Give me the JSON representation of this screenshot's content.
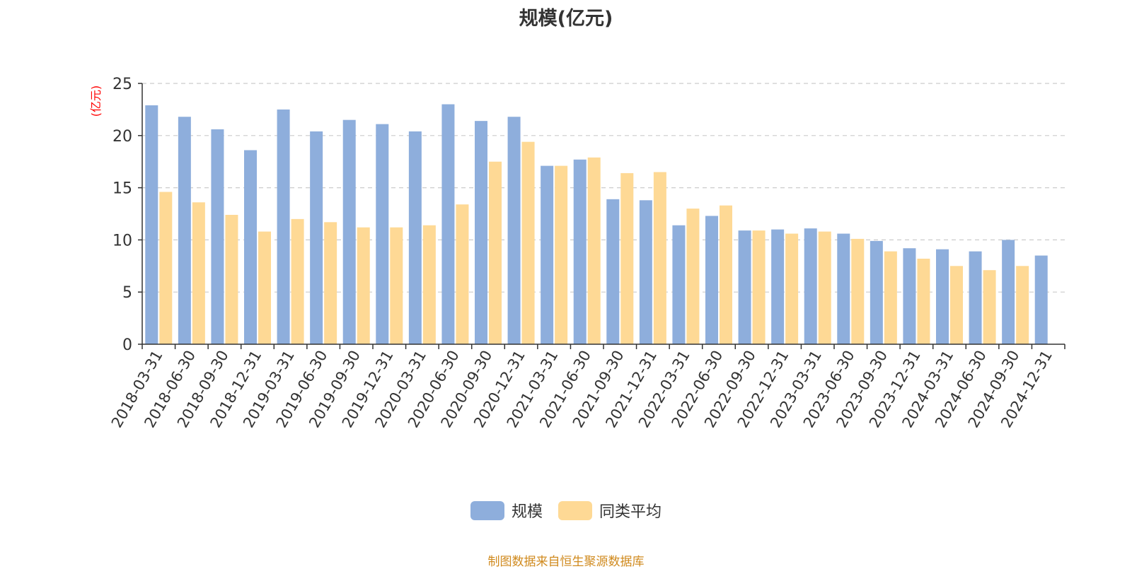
{
  "title": "规模(亿元)",
  "source": "制图数据来自恒生聚源数据库",
  "colors": {
    "series1": "#8eaedc",
    "series2": "#fed995",
    "axis": "#333333",
    "grid": "#cccccc",
    "unit": "#ff0000"
  },
  "chart_data": {
    "type": "bar",
    "title": "规模(亿元)",
    "ylabel": "(亿元)",
    "ylim": [
      0,
      25
    ],
    "yticks": [
      0,
      5,
      10,
      15,
      20,
      25
    ],
    "grid": true,
    "legend_position": "bottom",
    "categories": [
      "2018-03-31",
      "2018-06-30",
      "2018-09-30",
      "2018-12-31",
      "2019-03-31",
      "2019-06-30",
      "2019-09-30",
      "2019-12-31",
      "2020-03-31",
      "2020-06-30",
      "2020-09-30",
      "2020-12-31",
      "2021-03-31",
      "2021-06-30",
      "2021-09-30",
      "2021-12-31",
      "2022-03-31",
      "2022-06-30",
      "2022-09-30",
      "2022-12-31",
      "2023-03-31",
      "2023-06-30",
      "2023-09-30",
      "2023-12-31",
      "2024-03-31",
      "2024-06-30",
      "2024-09-30",
      "2024-12-31"
    ],
    "series": [
      {
        "name": "规模",
        "values": [
          22.9,
          21.8,
          20.6,
          18.6,
          22.5,
          20.4,
          21.5,
          21.1,
          20.4,
          23.0,
          21.4,
          21.8,
          17.1,
          17.7,
          13.9,
          13.8,
          11.4,
          12.3,
          10.9,
          11.0,
          11.1,
          10.6,
          9.9,
          9.2,
          9.1,
          8.9,
          10.0,
          8.5
        ]
      },
      {
        "name": "同类平均",
        "values": [
          14.6,
          13.6,
          12.4,
          10.8,
          12.0,
          11.7,
          11.2,
          11.2,
          11.4,
          13.4,
          17.5,
          19.4,
          17.1,
          17.9,
          16.4,
          16.5,
          13.0,
          13.3,
          10.9,
          10.6,
          10.8,
          10.1,
          8.9,
          8.2,
          7.5,
          7.1,
          7.5,
          null
        ]
      }
    ]
  }
}
